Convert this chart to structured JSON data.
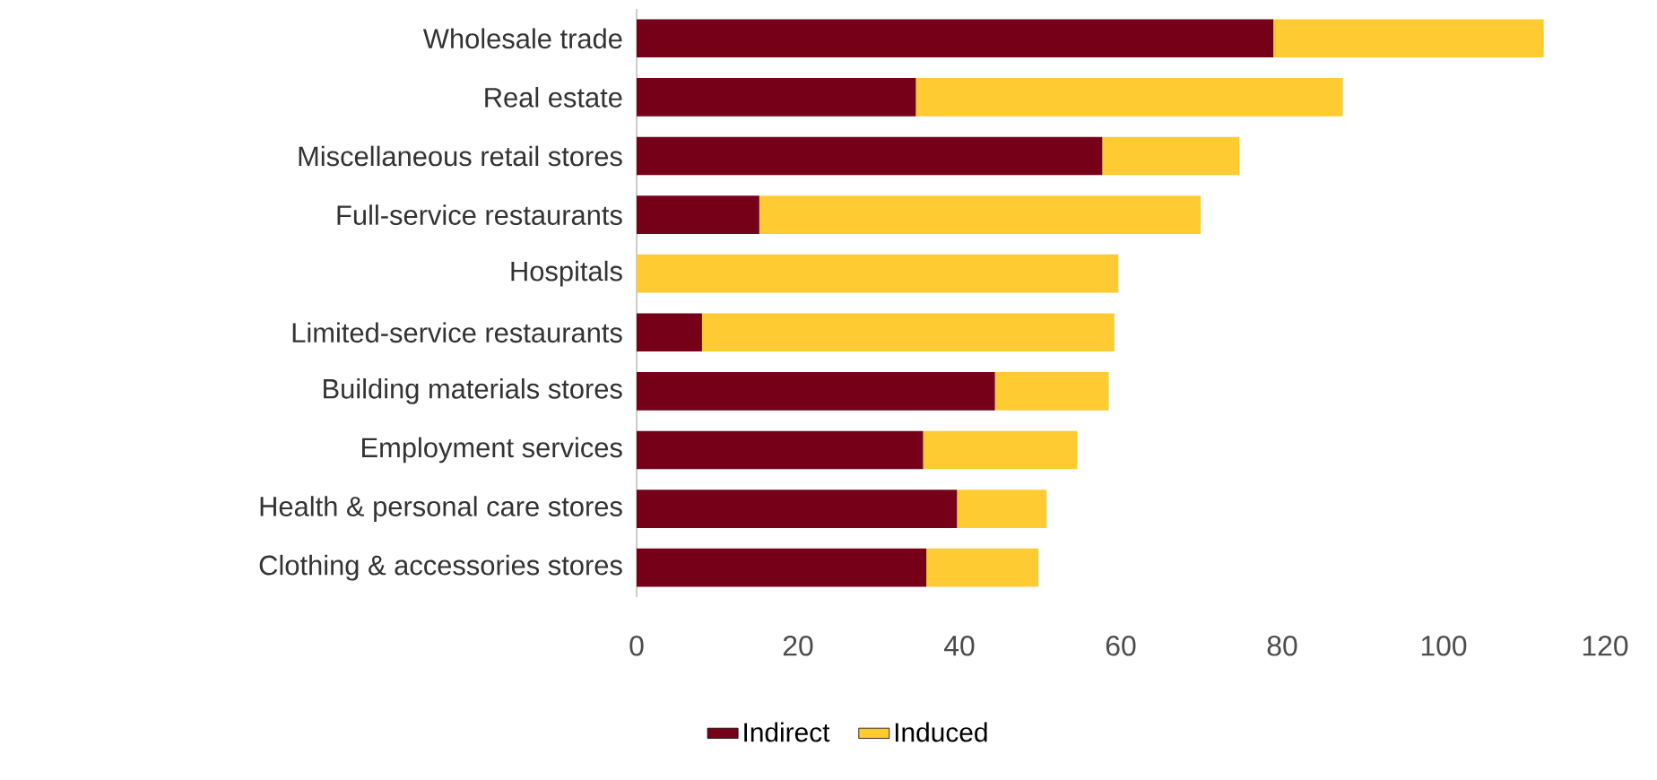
{
  "chart_data": {
    "type": "bar",
    "orientation": "horizontal",
    "stacked": true,
    "legend": "bottom",
    "categories": [
      "Wholesale trade",
      "Real estate",
      "Miscellaneous retail stores",
      "Full-service restaurants",
      "Hospitals",
      "Limited-service restaurants",
      "Building materials stores",
      "Employment services",
      "Health & personal care stores",
      "Clothing & accessories stores"
    ],
    "series": [
      {
        "name": "Indirect",
        "color": "#770019",
        "values": [
          78.9,
          34.6,
          57.7,
          15.2,
          0,
          8.1,
          44.4,
          35.5,
          39.7,
          35.9
        ]
      },
      {
        "name": "Induced",
        "color": "#ffcb33",
        "values": [
          33.5,
          52.9,
          17.0,
          54.7,
          59.7,
          51.1,
          14.1,
          19.1,
          11.1,
          13.9
        ]
      }
    ],
    "xlim": [
      0,
      120
    ],
    "xticks": [
      0,
      20,
      40,
      60,
      80,
      100,
      120
    ]
  }
}
